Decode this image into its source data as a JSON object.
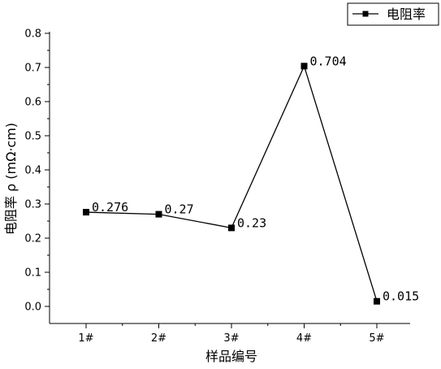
{
  "chart_data": {
    "type": "line",
    "categories": [
      "1#",
      "2#",
      "3#",
      "4#",
      "5#"
    ],
    "series": [
      {
        "name": "电阻率",
        "values": [
          0.276,
          0.27,
          0.23,
          0.704,
          0.015
        ]
      }
    ],
    "data_labels": [
      "0.276",
      "0.27",
      "0.23",
      "0.704",
      "0.015"
    ],
    "xlabel": "样品编号",
    "ylabel": "电阻率 ρ (mΩ·cm)",
    "ylim": [
      -0.05,
      0.8
    ],
    "yticks": [
      "0.0",
      "0.1",
      "0.2",
      "0.3",
      "0.4",
      "0.5",
      "0.6",
      "0.7",
      "0.8"
    ],
    "grid": false,
    "legend_position": "top-right",
    "marker": "square",
    "line_color": "#000000"
  }
}
